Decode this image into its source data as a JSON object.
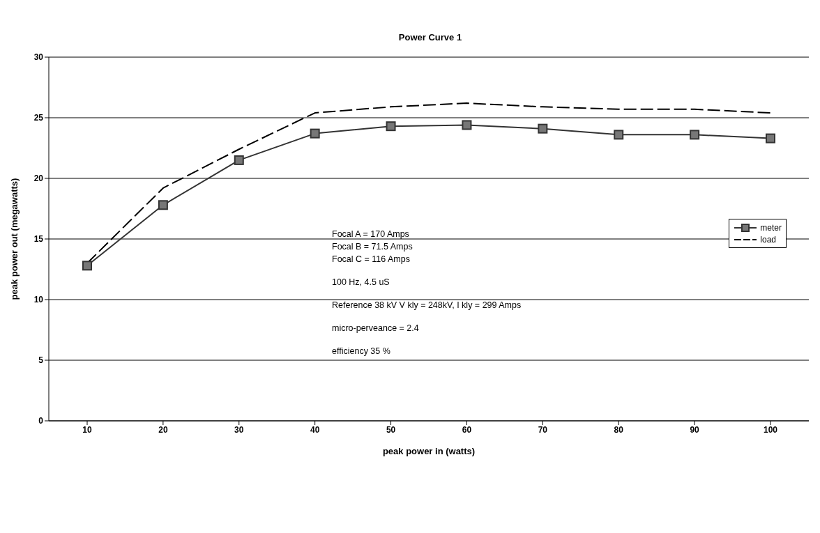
{
  "chart_data": {
    "type": "line",
    "title": "Power Curve 1",
    "xlabel": "peak power in (watts)",
    "ylabel": "peak power out (megawatts)",
    "categories": [
      "10",
      "20",
      "30",
      "40",
      "50",
      "60",
      "70",
      "80",
      "90",
      "100"
    ],
    "series": [
      {
        "name": "meter",
        "color": "#333333",
        "marker": "square",
        "line_style": "solid",
        "values": [
          12.8,
          17.8,
          21.5,
          23.7,
          24.3,
          24.4,
          24.1,
          23.6,
          23.6,
          23.3
        ]
      },
      {
        "name": "load",
        "color": "#000000",
        "marker": "none",
        "line_style": "dashed",
        "values": [
          13.0,
          19.2,
          22.4,
          25.4,
          25.9,
          26.2,
          25.9,
          25.7,
          25.7,
          25.4
        ]
      }
    ],
    "ylim": [
      0,
      30
    ],
    "yticks": [
      0,
      5,
      10,
      15,
      20,
      25,
      30
    ],
    "grid": "y",
    "legend": "right",
    "annotations": [
      "Focal A = 170 Amps",
      "Focal B = 71.5 Amps",
      "Focal C = 116 Amps",
      "100 Hz, 4.5 uS",
      "Reference 38 kV V kly = 248kV, I kly = 299 Amps",
      "micro-perveance = 2.4",
      "efficiency 35 %"
    ]
  }
}
